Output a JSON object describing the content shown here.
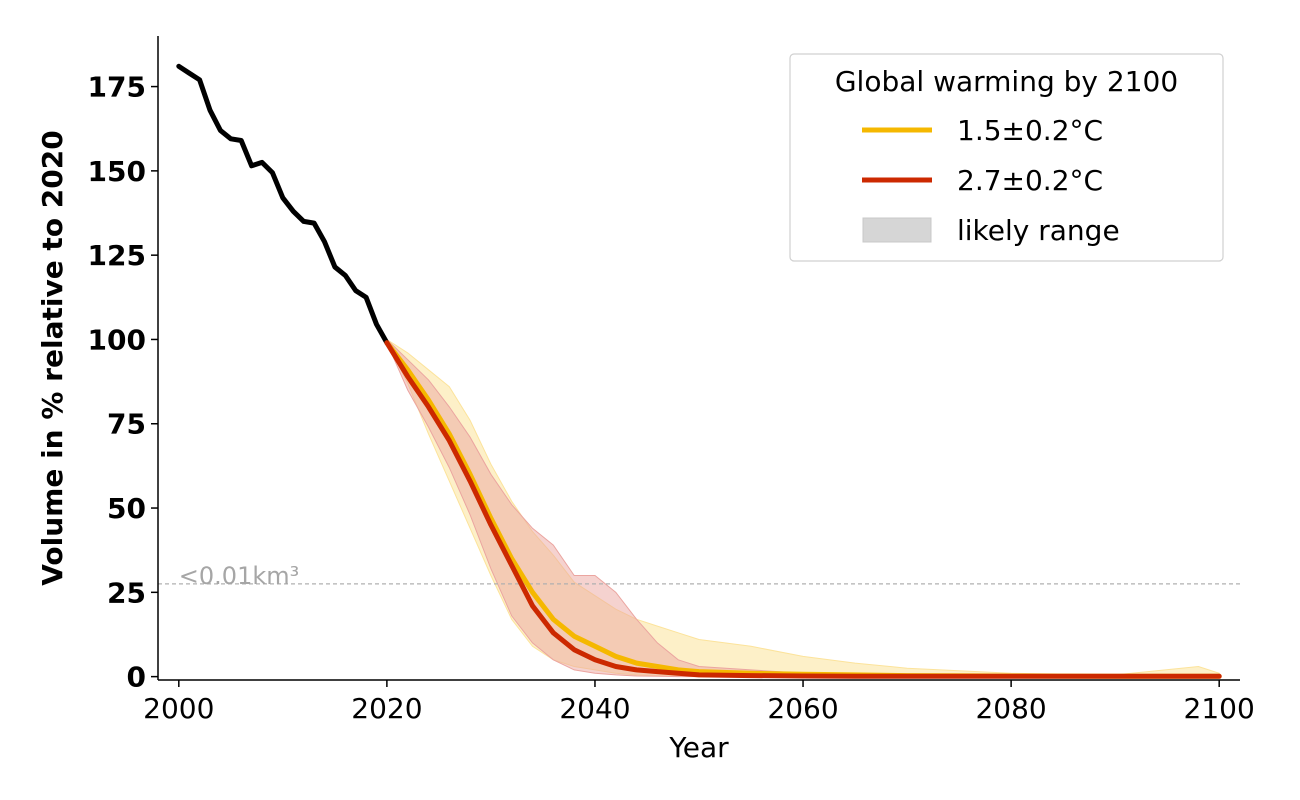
{
  "chart_data": {
    "type": "line",
    "title": "",
    "xlabel": "Year",
    "ylabel": "Volume in % relative to 2020",
    "xlim": [
      1998,
      2102
    ],
    "ylim": [
      -1,
      190
    ],
    "xticks": [
      2000,
      2020,
      2040,
      2060,
      2080,
      2100
    ],
    "yticks": [
      0,
      25,
      50,
      75,
      100,
      125,
      150,
      175
    ],
    "grid": false,
    "legend": {
      "title": "Global warming by 2100",
      "placement": "top-right",
      "entries": [
        {
          "label": "1.5±0.2°C",
          "kind": "line",
          "color": "#f5b800"
        },
        {
          "label": "2.7±0.2°C",
          "kind": "line",
          "color": "#cc2900"
        },
        {
          "label": "likely range",
          "kind": "patch",
          "color": "#d6d6d6"
        }
      ]
    },
    "threshold": {
      "y": 27.5,
      "label": "<0.01km³",
      "color": "#b0b0b0"
    },
    "historical": {
      "color": "#000000",
      "x": [
        2000,
        2001,
        2002,
        2003,
        2004,
        2005,
        2006,
        2007,
        2008,
        2009,
        2010,
        2011,
        2012,
        2013,
        2014,
        2015,
        2016,
        2017,
        2018,
        2019,
        2020
      ],
      "y": [
        181,
        179,
        177,
        168,
        162,
        159.5,
        159,
        151.5,
        152.5,
        149.5,
        142,
        138,
        135,
        134.5,
        129,
        121.5,
        119,
        114.5,
        112.5,
        104.5,
        99
      ]
    },
    "series": [
      {
        "name": "1.5±0.2°C",
        "color": "#f5b800",
        "band_color": "#fce39b",
        "x": [
          2020,
          2022,
          2024,
          2026,
          2028,
          2030,
          2032,
          2034,
          2036,
          2038,
          2040,
          2042,
          2044,
          2046,
          2048,
          2050,
          2055,
          2060,
          2065,
          2070,
          2080,
          2090,
          2098,
          2100
        ],
        "y": [
          99,
          91,
          82,
          72,
          60,
          47,
          35,
          25,
          17,
          12,
          9,
          6,
          4,
          3,
          2,
          1.5,
          1,
          0.7,
          0.5,
          0.3,
          0.2,
          0.1,
          0.1,
          0.1
        ],
        "lower": [
          99,
          87,
          72,
          58,
          44,
          30,
          17,
          9,
          5,
          3,
          2,
          1,
          0.5,
          0.3,
          0.2,
          0.1,
          0,
          0,
          0,
          0,
          0,
          0,
          0,
          0
        ],
        "upper": [
          100,
          96,
          91,
          86,
          76,
          63,
          52,
          43,
          36,
          28,
          24,
          20,
          17,
          15,
          13,
          11,
          9,
          6,
          4,
          2.5,
          1,
          0.5,
          3,
          1
        ]
      },
      {
        "name": "2.7±0.2°C",
        "color": "#cc2900",
        "band_color": "#eba5a0",
        "x": [
          2020,
          2022,
          2024,
          2026,
          2028,
          2030,
          2032,
          2034,
          2036,
          2038,
          2040,
          2042,
          2044,
          2046,
          2048,
          2050,
          2055,
          2060,
          2065,
          2070,
          2080,
          2090,
          2100
        ],
        "y": [
          99,
          89,
          80,
          70,
          58,
          45,
          33,
          21,
          13,
          8,
          5,
          3,
          2,
          1.5,
          1,
          0.5,
          0.3,
          0.2,
          0.1,
          0.1,
          0.1,
          0.1,
          0.1
        ],
        "lower": [
          99,
          85,
          74,
          62,
          48,
          32,
          18,
          10,
          5,
          2,
          1,
          0.5,
          0.2,
          0.1,
          0,
          0,
          0,
          0,
          0,
          0,
          0,
          0,
          0
        ],
        "upper": [
          100,
          94,
          88,
          80,
          71,
          60,
          51,
          44,
          39,
          30,
          30,
          25,
          17,
          10,
          5,
          3,
          2,
          1,
          1,
          0.5,
          0.3,
          0.2,
          0.2
        ]
      }
    ]
  }
}
